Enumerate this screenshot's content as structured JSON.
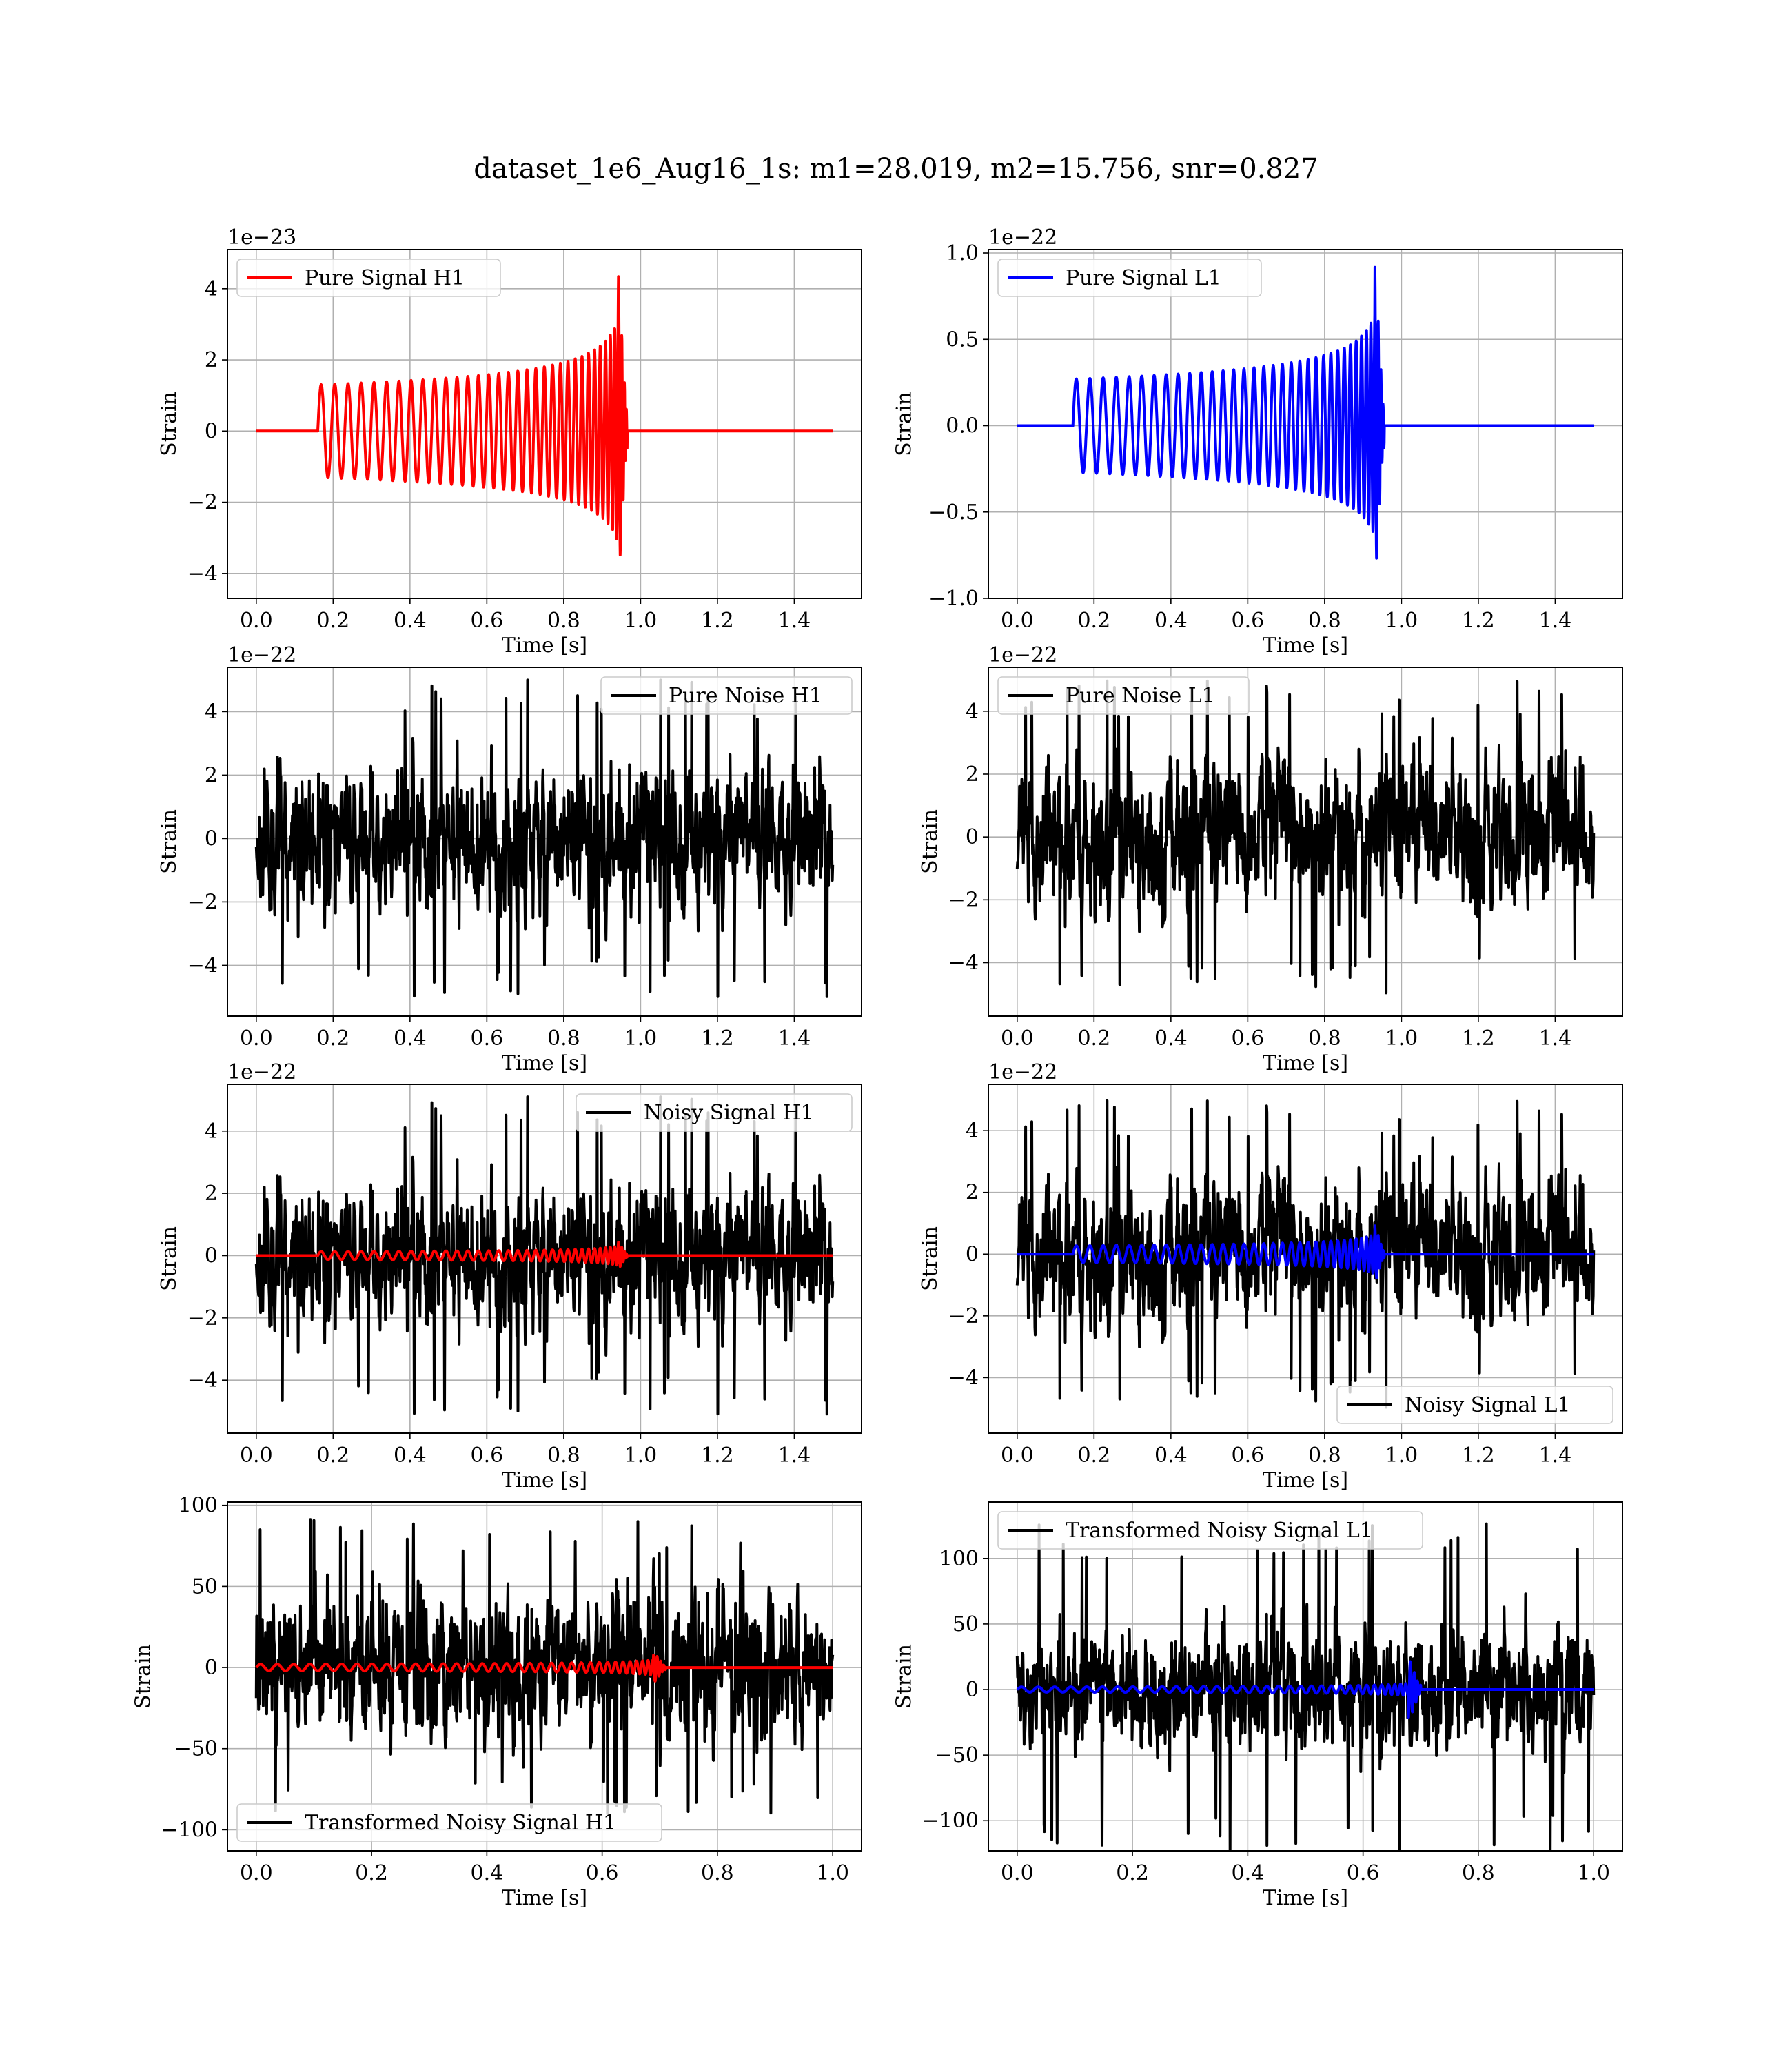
{
  "figure": {
    "title": "dataset_1e6_Aug16_1s: m1=28.019, m2=15.756, snr=0.827"
  },
  "colors": {
    "h1": "#ff0000",
    "l1": "#0000ff",
    "noise": "#000000"
  },
  "chart_data": [
    {
      "id": "pure-signal-h1",
      "type": "line",
      "xlabel": "Time [s]",
      "ylabel": "Strain",
      "offset_text": "1e−23",
      "xlim": [
        -0.075,
        1.575
      ],
      "ylim": [
        -4.7,
        5.1
      ],
      "xticks": [
        0.0,
        0.2,
        0.4,
        0.6,
        0.8,
        1.0,
        1.2,
        1.4
      ],
      "xtick_labels": [
        "0.0",
        "0.2",
        "0.4",
        "0.6",
        "0.8",
        "1.0",
        "1.2",
        "1.4"
      ],
      "yticks": [
        -4,
        -2,
        0,
        2,
        4
      ],
      "ytick_labels": [
        "−4",
        "−2",
        "0",
        "2",
        "4"
      ],
      "grid": true,
      "legend_position": "upper-left",
      "series": [
        {
          "name": "Pure Signal H1",
          "kind": "chirp",
          "color": "h1",
          "in_legend": true,
          "start": 0.16,
          "end": 0.965,
          "amp_start": 1.3,
          "amp_peak": 4.7,
          "f0": 28,
          "f1": 210,
          "t_max": 1.5
        }
      ]
    },
    {
      "id": "pure-signal-l1",
      "type": "line",
      "xlabel": "Time [s]",
      "ylabel": "Strain",
      "offset_text": "1e−22",
      "xlim": [
        -0.075,
        1.575
      ],
      "ylim": [
        -1.0,
        1.02
      ],
      "xticks": [
        0.0,
        0.2,
        0.4,
        0.6,
        0.8,
        1.0,
        1.2,
        1.4
      ],
      "xtick_labels": [
        "0.0",
        "0.2",
        "0.4",
        "0.6",
        "0.8",
        "1.0",
        "1.2",
        "1.4"
      ],
      "yticks": [
        -1.0,
        -0.5,
        0.0,
        0.5,
        1.0
      ],
      "ytick_labels": [
        "−1.0",
        "−0.5",
        "0.0",
        "0.5",
        "1.0"
      ],
      "grid": true,
      "legend_position": "upper-left",
      "series": [
        {
          "name": "Pure Signal L1",
          "kind": "chirp",
          "color": "l1",
          "in_legend": true,
          "start": 0.145,
          "end": 0.955,
          "amp_start": 0.27,
          "amp_peak": 0.95,
          "f0": 28,
          "f1": 210,
          "t_max": 1.5
        }
      ]
    },
    {
      "id": "pure-noise-h1",
      "type": "line",
      "xlabel": "Time [s]",
      "ylabel": "Strain",
      "offset_text": "1e−22",
      "xlim": [
        -0.075,
        1.575
      ],
      "ylim": [
        -5.6,
        5.4
      ],
      "xticks": [
        0.0,
        0.2,
        0.4,
        0.6,
        0.8,
        1.0,
        1.2,
        1.4
      ],
      "xtick_labels": [
        "0.0",
        "0.2",
        "0.4",
        "0.6",
        "0.8",
        "1.0",
        "1.2",
        "1.4"
      ],
      "yticks": [
        -4,
        -2,
        0,
        2,
        4
      ],
      "ytick_labels": [
        "−4",
        "−2",
        "0",
        "2",
        "4"
      ],
      "grid": true,
      "legend_position": "upper-right",
      "series": [
        {
          "name": "Pure Noise H1",
          "kind": "noise",
          "color": "noise",
          "in_legend": true,
          "amp": 1.5,
          "peak": 5.0,
          "seed": 11,
          "t_max": 1.5
        }
      ]
    },
    {
      "id": "pure-noise-l1",
      "type": "line",
      "xlabel": "Time [s]",
      "ylabel": "Strain",
      "offset_text": "1e−22",
      "xlim": [
        -0.075,
        1.575
      ],
      "ylim": [
        -5.7,
        5.4
      ],
      "xticks": [
        0.0,
        0.2,
        0.4,
        0.6,
        0.8,
        1.0,
        1.2,
        1.4
      ],
      "xtick_labels": [
        "0.0",
        "0.2",
        "0.4",
        "0.6",
        "0.8",
        "1.0",
        "1.2",
        "1.4"
      ],
      "yticks": [
        -4,
        -2,
        0,
        2,
        4
      ],
      "ytick_labels": [
        "−4",
        "−2",
        "0",
        "2",
        "4"
      ],
      "grid": true,
      "legend_position": "upper-left",
      "series": [
        {
          "name": "Pure Noise L1",
          "kind": "noise",
          "color": "noise",
          "in_legend": true,
          "amp": 1.5,
          "peak": 5.0,
          "seed": 23,
          "t_max": 1.5
        }
      ]
    },
    {
      "id": "noisy-signal-h1",
      "type": "line",
      "xlabel": "Time [s]",
      "ylabel": "Strain",
      "offset_text": "1e−22",
      "xlim": [
        -0.075,
        1.575
      ],
      "ylim": [
        -5.7,
        5.5
      ],
      "xticks": [
        0.0,
        0.2,
        0.4,
        0.6,
        0.8,
        1.0,
        1.2,
        1.4
      ],
      "xtick_labels": [
        "0.0",
        "0.2",
        "0.4",
        "0.6",
        "0.8",
        "1.0",
        "1.2",
        "1.4"
      ],
      "yticks": [
        -4,
        -2,
        0,
        2,
        4
      ],
      "ytick_labels": [
        "−4",
        "−2",
        "0",
        "2",
        "4"
      ],
      "grid": true,
      "legend_position": "upper-right",
      "series": [
        {
          "name": "Noisy Signal H1",
          "kind": "noise",
          "color": "noise",
          "in_legend": true,
          "amp": 1.5,
          "peak": 5.1,
          "seed": 11,
          "t_max": 1.5
        },
        {
          "name": "",
          "kind": "chirp",
          "color": "h1",
          "in_legend": false,
          "start": 0.16,
          "end": 0.965,
          "amp_start": 0.13,
          "amp_peak": 0.47,
          "f0": 28,
          "f1": 210,
          "t_max": 1.5
        }
      ]
    },
    {
      "id": "noisy-signal-l1",
      "type": "line",
      "xlabel": "Time [s]",
      "ylabel": "Strain",
      "offset_text": "1e−22",
      "xlim": [
        -0.075,
        1.575
      ],
      "ylim": [
        -5.8,
        5.5
      ],
      "xticks": [
        0.0,
        0.2,
        0.4,
        0.6,
        0.8,
        1.0,
        1.2,
        1.4
      ],
      "xtick_labels": [
        "0.0",
        "0.2",
        "0.4",
        "0.6",
        "0.8",
        "1.0",
        "1.2",
        "1.4"
      ],
      "yticks": [
        -4,
        -2,
        0,
        2,
        4
      ],
      "ytick_labels": [
        "−4",
        "−2",
        "0",
        "2",
        "4"
      ],
      "grid": true,
      "legend_position": "lower-right",
      "series": [
        {
          "name": "Noisy Signal L1",
          "kind": "noise",
          "color": "noise",
          "in_legend": true,
          "amp": 1.5,
          "peak": 5.0,
          "seed": 23,
          "t_max": 1.5
        },
        {
          "name": "",
          "kind": "chirp",
          "color": "l1",
          "in_legend": false,
          "start": 0.145,
          "end": 0.955,
          "amp_start": 0.27,
          "amp_peak": 0.95,
          "f0": 28,
          "f1": 210,
          "t_max": 1.5
        }
      ]
    },
    {
      "id": "transformed-noisy-signal-h1",
      "type": "line",
      "xlabel": "Time [s]",
      "ylabel": "Strain",
      "offset_text": "",
      "xlim": [
        -0.05,
        1.05
      ],
      "ylim": [
        -113,
        102
      ],
      "xticks": [
        0.0,
        0.2,
        0.4,
        0.6,
        0.8,
        1.0
      ],
      "xtick_labels": [
        "0.0",
        "0.2",
        "0.4",
        "0.6",
        "0.8",
        "1.0"
      ],
      "yticks": [
        -100,
        -50,
        0,
        50,
        100
      ],
      "ytick_labels": [
        "−100",
        "−50",
        "0",
        "50",
        "100"
      ],
      "grid": true,
      "legend_position": "lower-left",
      "series": [
        {
          "name": "Transformed Noisy Signal H1",
          "kind": "noise",
          "color": "noise",
          "in_legend": true,
          "amp": 28,
          "peak": 92,
          "seed": 37,
          "t_max": 1.0
        },
        {
          "name": "",
          "kind": "chirp",
          "color": "h1",
          "in_legend": false,
          "start": 0.0,
          "end": 0.71,
          "amp_start": 2,
          "amp_peak": 10,
          "f0": 34,
          "f1": 190,
          "t_max": 1.0
        }
      ]
    },
    {
      "id": "transformed-noisy-signal-l1",
      "type": "line",
      "xlabel": "Time [s]",
      "ylabel": "Strain",
      "offset_text": "",
      "xlim": [
        -0.05,
        1.05
      ],
      "ylim": [
        -123,
        143
      ],
      "xticks": [
        0.0,
        0.2,
        0.4,
        0.6,
        0.8,
        1.0
      ],
      "xtick_labels": [
        "0.0",
        "0.2",
        "0.4",
        "0.6",
        "0.8",
        "1.0"
      ],
      "yticks": [
        -100,
        -50,
        0,
        50,
        100
      ],
      "ytick_labels": [
        "−100",
        "−50",
        "0",
        "50",
        "100"
      ],
      "grid": true,
      "legend_position": "upper-left",
      "series": [
        {
          "name": "Transformed Noisy Signal L1",
          "kind": "noise",
          "color": "noise",
          "in_legend": true,
          "amp": 30,
          "peak": 128,
          "seed": 53,
          "t_max": 1.0
        },
        {
          "name": "",
          "kind": "chirp",
          "color": "l1",
          "in_legend": false,
          "start": 0.0,
          "end": 0.7,
          "amp_start": 2,
          "amp_peak": 25,
          "f0": 34,
          "f1": 190,
          "t_max": 1.0
        }
      ]
    }
  ]
}
